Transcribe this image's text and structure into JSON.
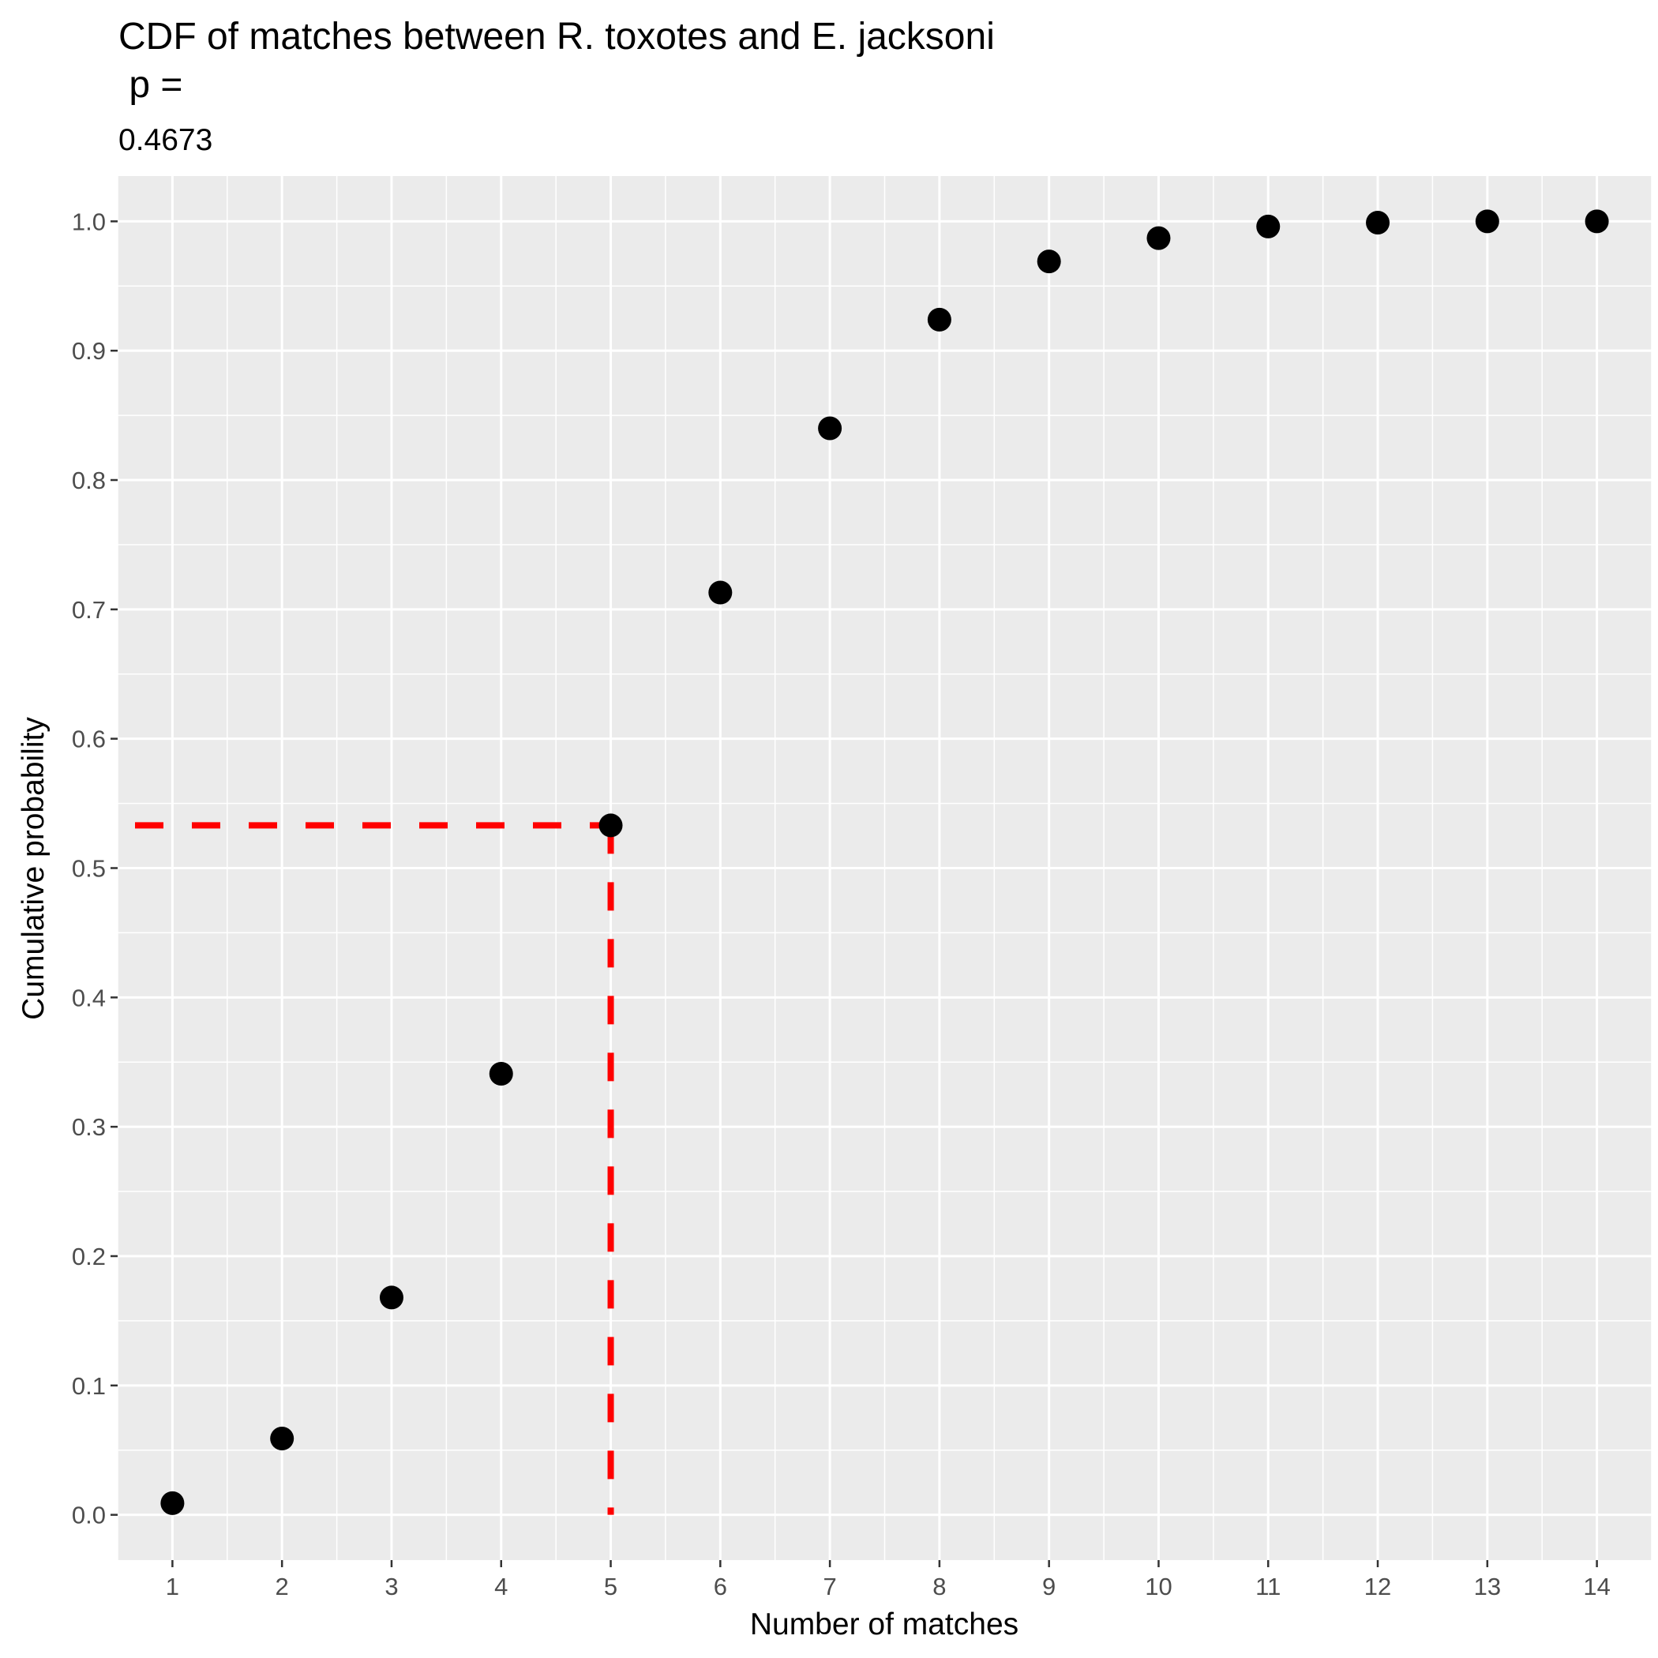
{
  "chart_data": {
    "type": "scatter",
    "title": "CDF of matches between R. toxotes and E. jacksoni",
    "title_line2": " p =",
    "subtitle": "0.4673",
    "xlabel": "Number of matches",
    "ylabel": "Cumulative probability",
    "xlim": [
      0.5,
      14.5
    ],
    "ylim": [
      -0.035,
      1.035
    ],
    "x_ticks": [
      "1",
      "2",
      "3",
      "4",
      "5",
      "6",
      "7",
      "8",
      "9",
      "10",
      "11",
      "12",
      "13",
      "14"
    ],
    "y_ticks": [
      "0.0",
      "0.1",
      "0.2",
      "0.3",
      "0.4",
      "0.5",
      "0.6",
      "0.7",
      "0.8",
      "0.9",
      "1.0"
    ],
    "grid": true,
    "points": [
      {
        "x": 1,
        "y": 0.009
      },
      {
        "x": 2,
        "y": 0.059
      },
      {
        "x": 3,
        "y": 0.168
      },
      {
        "x": 4,
        "y": 0.341
      },
      {
        "x": 5,
        "y": 0.533
      },
      {
        "x": 6,
        "y": 0.713
      },
      {
        "x": 7,
        "y": 0.84
      },
      {
        "x": 8,
        "y": 0.924
      },
      {
        "x": 9,
        "y": 0.969
      },
      {
        "x": 10,
        "y": 0.987
      },
      {
        "x": 11,
        "y": 0.996
      },
      {
        "x": 12,
        "y": 0.999
      },
      {
        "x": 13,
        "y": 1.0
      },
      {
        "x": 14,
        "y": 1.0
      }
    ],
    "reference": {
      "x": 5,
      "y": 0.533
    },
    "colors": {
      "panel": "#ebebeb",
      "grid": "#ffffff",
      "points": "#000000",
      "reference": "#ff0000"
    }
  }
}
